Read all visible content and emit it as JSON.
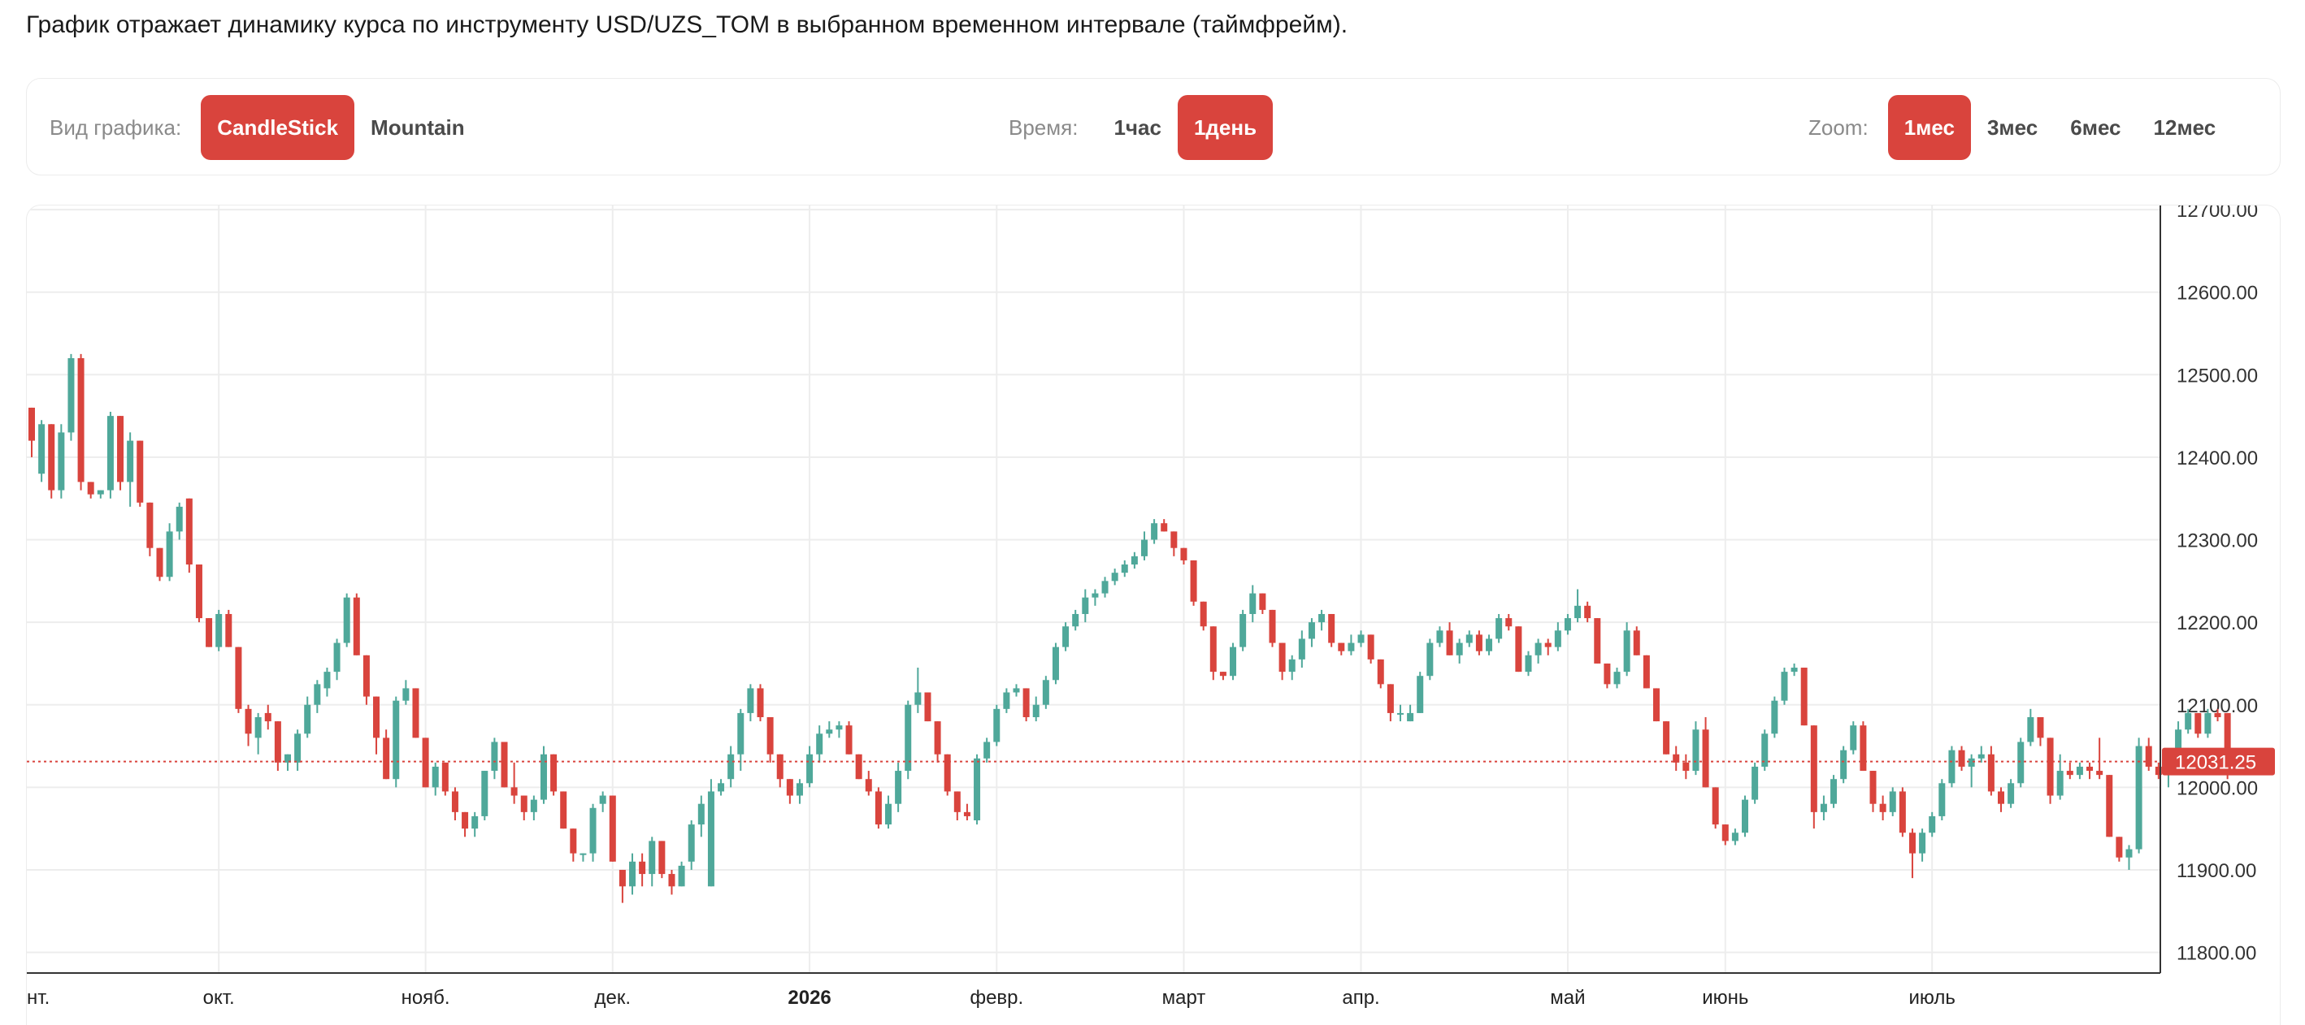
{
  "description": "График отражает динамику курса по инструменту USD/UZS_TOM в выбранном временном интервале (таймфрейм).",
  "toolbar": {
    "chart_type": {
      "label": "Вид графика:",
      "options": [
        "CandleStick",
        "Mountain"
      ],
      "selected": "CandleStick"
    },
    "time": {
      "label": "Время:",
      "options": [
        "1час",
        "1день"
      ],
      "selected": "1день"
    },
    "zoom": {
      "label": "Zoom:",
      "options": [
        "1мес",
        "3мес",
        "6мес",
        "12мес"
      ],
      "selected": "1мес"
    }
  },
  "colors": {
    "up": "#4fa89a",
    "down": "#d9443d",
    "accent": "#d9443d",
    "grid": "#ededed",
    "axis": "#333333"
  },
  "chart_data": {
    "type": "candlestick",
    "instrument": "USD/UZS_TOM",
    "yticks": [
      11800,
      11900,
      12000,
      12100,
      12200,
      12300,
      12400,
      12500,
      12600,
      12700
    ],
    "ylim": [
      11775,
      12705
    ],
    "ytick_format": "2 decimals",
    "x_index_range": [
      0,
      217
    ],
    "xticks": [
      {
        "label": "нт.",
        "index": 0,
        "bold": false
      },
      {
        "label": "окт.",
        "index": 19,
        "bold": false
      },
      {
        "label": "нояб.",
        "index": 40,
        "bold": false
      },
      {
        "label": "дек.",
        "index": 59,
        "bold": false
      },
      {
        "label": "2026",
        "index": 79,
        "bold": true
      },
      {
        "label": "февр.",
        "index": 98,
        "bold": false
      },
      {
        "label": "март",
        "index": 117,
        "bold": false
      },
      {
        "label": "апр.",
        "index": 135,
        "bold": false
      },
      {
        "label": "май",
        "index": 156,
        "bold": false
      },
      {
        "label": "июнь",
        "index": 172,
        "bold": false
      },
      {
        "label": "июль",
        "index": 193,
        "bold": false
      }
    ],
    "last_price": 12031.25,
    "last_price_label": "12031.25",
    "grid": true,
    "candles": [
      [
        12460,
        12460,
        12400,
        12420
      ],
      [
        12380,
        12445,
        12370,
        12440
      ],
      [
        12440,
        12440,
        12350,
        12360
      ],
      [
        12360,
        12440,
        12350,
        12430
      ],
      [
        12430,
        12525,
        12420,
        12520
      ],
      [
        12520,
        12525,
        12360,
        12370
      ],
      [
        12370,
        12370,
        12350,
        12355
      ],
      [
        12355,
        12360,
        12350,
        12360
      ],
      [
        12360,
        12455,
        12350,
        12450
      ],
      [
        12450,
        12450,
        12360,
        12370
      ],
      [
        12370,
        12430,
        12340,
        12420
      ],
      [
        12420,
        12420,
        12340,
        12345
      ],
      [
        12345,
        12345,
        12280,
        12290
      ],
      [
        12290,
        12290,
        12250,
        12255
      ],
      [
        12255,
        12320,
        12250,
        12310
      ],
      [
        12310,
        12345,
        12300,
        12340
      ],
      [
        12350,
        12350,
        12260,
        12270
      ],
      [
        12270,
        12270,
        12200,
        12205
      ],
      [
        12205,
        12205,
        12170,
        12170
      ],
      [
        12170,
        12215,
        12165,
        12210
      ],
      [
        12210,
        12215,
        12170,
        12170
      ],
      [
        12170,
        12170,
        12090,
        12095
      ],
      [
        12095,
        12100,
        12050,
        12065
      ],
      [
        12060,
        12090,
        12040,
        12085
      ],
      [
        12090,
        12100,
        12070,
        12080
      ],
      [
        12080,
        12080,
        12020,
        12030
      ],
      [
        12030,
        12040,
        12020,
        12040
      ],
      [
        12030,
        12070,
        12020,
        12065
      ],
      [
        12065,
        12110,
        12060,
        12100
      ],
      [
        12100,
        12130,
        12090,
        12125
      ],
      [
        12120,
        12145,
        12110,
        12140
      ],
      [
        12140,
        12180,
        12130,
        12175
      ],
      [
        12175,
        12235,
        12170,
        12230
      ],
      [
        12230,
        12235,
        12160,
        12160
      ],
      [
        12160,
        12160,
        12100,
        12110
      ],
      [
        12110,
        12110,
        12040,
        12060
      ],
      [
        12060,
        12070,
        12010,
        12010
      ],
      [
        12010,
        12110,
        12000,
        12105
      ],
      [
        12105,
        12130,
        12100,
        12120
      ],
      [
        12120,
        12120,
        12060,
        12060
      ],
      [
        12060,
        12060,
        12000,
        12000
      ],
      [
        12000,
        12030,
        11990,
        12025
      ],
      [
        12030,
        12030,
        11990,
        11995
      ],
      [
        11995,
        12000,
        11960,
        11970
      ],
      [
        11970,
        11970,
        11940,
        11950
      ],
      [
        11950,
        11970,
        11940,
        11965
      ],
      [
        11965,
        12020,
        11960,
        12020
      ],
      [
        12020,
        12060,
        12010,
        12055
      ],
      [
        12055,
        12055,
        12000,
        12000
      ],
      [
        12000,
        12030,
        11980,
        11990
      ],
      [
        11990,
        11990,
        11960,
        11970
      ],
      [
        11970,
        11990,
        11960,
        11985
      ],
      [
        11985,
        12050,
        11980,
        12040
      ],
      [
        12040,
        12040,
        11990,
        11995
      ],
      [
        11995,
        11995,
        11950,
        11950
      ],
      [
        11950,
        11950,
        11910,
        11920
      ],
      [
        11920,
        11920,
        11910,
        11920
      ],
      [
        11920,
        11980,
        11910,
        11975
      ],
      [
        11980,
        11995,
        11970,
        11990
      ],
      [
        11990,
        11990,
        11910,
        11910
      ],
      [
        11900,
        11900,
        11860,
        11880
      ],
      [
        11880,
        11920,
        11870,
        11910
      ],
      [
        11910,
        11920,
        11880,
        11895
      ],
      [
        11895,
        11940,
        11880,
        11935
      ],
      [
        11935,
        11935,
        11890,
        11895
      ],
      [
        11895,
        11900,
        11870,
        11880
      ],
      [
        11880,
        11910,
        11880,
        11905
      ],
      [
        11910,
        11960,
        11900,
        11955
      ],
      [
        11955,
        11990,
        11940,
        11980
      ],
      [
        11880,
        12010,
        11880,
        11995
      ],
      [
        11995,
        12010,
        11990,
        12005
      ],
      [
        12010,
        12050,
        12000,
        12040
      ],
      [
        12040,
        12095,
        12020,
        12090
      ],
      [
        12090,
        12125,
        12080,
        12120
      ],
      [
        12120,
        12125,
        12080,
        12085
      ],
      [
        12085,
        12085,
        12030,
        12040
      ],
      [
        12040,
        12040,
        12000,
        12010
      ],
      [
        12010,
        12010,
        11980,
        11990
      ],
      [
        11990,
        12010,
        11980,
        12005
      ],
      [
        12005,
        12050,
        12000,
        12040
      ],
      [
        12040,
        12075,
        12030,
        12065
      ],
      [
        12065,
        12080,
        12060,
        12070
      ],
      [
        12070,
        12080,
        12060,
        12075
      ],
      [
        12075,
        12080,
        12040,
        12040
      ],
      [
        12040,
        12040,
        12010,
        12010
      ],
      [
        12010,
        12020,
        11990,
        11995
      ],
      [
        11995,
        12000,
        11950,
        11955
      ],
      [
        11955,
        11990,
        11950,
        11980
      ],
      [
        11980,
        12030,
        11970,
        12020
      ],
      [
        12020,
        12105,
        12010,
        12100
      ],
      [
        12100,
        12145,
        12090,
        12115
      ],
      [
        12115,
        12115,
        12080,
        12080
      ],
      [
        12080,
        12080,
        12030,
        12040
      ],
      [
        12040,
        12040,
        11990,
        11995
      ],
      [
        11995,
        11995,
        11960,
        11970
      ],
      [
        11970,
        11980,
        11960,
        11965
      ],
      [
        11960,
        12040,
        11955,
        12035
      ],
      [
        12035,
        12060,
        12030,
        12055
      ],
      [
        12055,
        12100,
        12050,
        12095
      ],
      [
        12095,
        12120,
        12090,
        12115
      ],
      [
        12115,
        12125,
        12110,
        12120
      ],
      [
        12120,
        12120,
        12080,
        12085
      ],
      [
        12085,
        12110,
        12080,
        12100
      ],
      [
        12100,
        12135,
        12095,
        12130
      ],
      [
        12130,
        12175,
        12125,
        12170
      ],
      [
        12170,
        12200,
        12165,
        12195
      ],
      [
        12195,
        12215,
        12190,
        12210
      ],
      [
        12210,
        12240,
        12200,
        12230
      ],
      [
        12230,
        12240,
        12220,
        12235
      ],
      [
        12235,
        12255,
        12230,
        12250
      ],
      [
        12250,
        12265,
        12245,
        12260
      ],
      [
        12260,
        12275,
        12255,
        12270
      ],
      [
        12270,
        12285,
        12265,
        12280
      ],
      [
        12280,
        12310,
        12275,
        12300
      ],
      [
        12300,
        12325,
        12295,
        12320
      ],
      [
        12320,
        12325,
        12310,
        12310
      ],
      [
        12310,
        12310,
        12280,
        12290
      ],
      [
        12290,
        12290,
        12270,
        12275
      ],
      [
        12275,
        12275,
        12220,
        12225
      ],
      [
        12225,
        12225,
        12190,
        12195
      ],
      [
        12195,
        12195,
        12130,
        12140
      ],
      [
        12140,
        12140,
        12130,
        12135
      ],
      [
        12135,
        12175,
        12130,
        12170
      ],
      [
        12170,
        12215,
        12165,
        12210
      ],
      [
        12210,
        12245,
        12200,
        12235
      ],
      [
        12235,
        12235,
        12210,
        12215
      ],
      [
        12215,
        12215,
        12170,
        12175
      ],
      [
        12175,
        12175,
        12130,
        12140
      ],
      [
        12140,
        12160,
        12130,
        12155
      ],
      [
        12155,
        12190,
        12145,
        12180
      ],
      [
        12180,
        12205,
        12170,
        12200
      ],
      [
        12200,
        12215,
        12190,
        12210
      ],
      [
        12210,
        12210,
        12170,
        12175
      ],
      [
        12175,
        12175,
        12160,
        12165
      ],
      [
        12165,
        12185,
        12160,
        12175
      ],
      [
        12175,
        12190,
        12170,
        12185
      ],
      [
        12185,
        12185,
        12150,
        12155
      ],
      [
        12155,
        12155,
        12120,
        12125
      ],
      [
        12125,
        12125,
        12080,
        12090
      ],
      [
        12090,
        12100,
        12080,
        12090
      ],
      [
        12080,
        12100,
        12080,
        12090
      ],
      [
        12090,
        12140,
        12090,
        12135
      ],
      [
        12135,
        12180,
        12130,
        12175
      ],
      [
        12175,
        12195,
        12170,
        12190
      ],
      [
        12190,
        12200,
        12160,
        12160
      ],
      [
        12160,
        12180,
        12150,
        12175
      ],
      [
        12175,
        12190,
        12170,
        12185
      ],
      [
        12185,
        12190,
        12160,
        12165
      ],
      [
        12165,
        12185,
        12160,
        12180
      ],
      [
        12180,
        12210,
        12175,
        12205
      ],
      [
        12205,
        12210,
        12190,
        12195
      ],
      [
        12195,
        12195,
        12140,
        12140
      ],
      [
        12140,
        12165,
        12135,
        12160
      ],
      [
        12160,
        12180,
        12150,
        12175
      ],
      [
        12175,
        12180,
        12160,
        12170
      ],
      [
        12170,
        12200,
        12165,
        12190
      ],
      [
        12190,
        12210,
        12185,
        12205
      ],
      [
        12205,
        12240,
        12200,
        12220
      ],
      [
        12220,
        12225,
        12200,
        12205
      ],
      [
        12205,
        12205,
        12150,
        12150
      ],
      [
        12150,
        12150,
        12120,
        12125
      ],
      [
        12125,
        12145,
        12120,
        12140
      ],
      [
        12140,
        12200,
        12135,
        12190
      ],
      [
        12190,
        12195,
        12160,
        12160
      ],
      [
        12160,
        12160,
        12120,
        12120
      ],
      [
        12120,
        12120,
        12080,
        12080
      ],
      [
        12080,
        12080,
        12040,
        12040
      ],
      [
        12040,
        12050,
        12020,
        12030
      ],
      [
        12030,
        12040,
        12010,
        12020
      ],
      [
        12020,
        12080,
        12015,
        12070
      ],
      [
        12070,
        12085,
        12000,
        12000
      ],
      [
        12000,
        12000,
        11950,
        11955
      ],
      [
        11955,
        11955,
        11930,
        11935
      ],
      [
        11935,
        11950,
        11930,
        11945
      ],
      [
        11945,
        11990,
        11940,
        11985
      ],
      [
        11985,
        12030,
        11980,
        12025
      ],
      [
        12025,
        12070,
        12020,
        12065
      ],
      [
        12065,
        12110,
        12060,
        12105
      ],
      [
        12105,
        12145,
        12100,
        12140
      ],
      [
        12140,
        12150,
        12135,
        12145
      ],
      [
        12145,
        12145,
        12075,
        12075
      ],
      [
        12075,
        12075,
        11950,
        11970
      ],
      [
        11970,
        11990,
        11960,
        11980
      ],
      [
        11980,
        12015,
        11975,
        12010
      ],
      [
        12010,
        12050,
        12005,
        12045
      ],
      [
        12045,
        12080,
        12040,
        12075
      ],
      [
        12075,
        12080,
        12020,
        12020
      ],
      [
        12020,
        12020,
        11970,
        11980
      ],
      [
        11980,
        11990,
        11960,
        11970
      ],
      [
        11970,
        12000,
        11965,
        11995
      ],
      [
        11995,
        12000,
        11940,
        11945
      ],
      [
        11945,
        11950,
        11890,
        11920
      ],
      [
        11920,
        11950,
        11910,
        11945
      ],
      [
        11945,
        11970,
        11940,
        11965
      ],
      [
        11965,
        12010,
        11960,
        12005
      ],
      [
        12005,
        12050,
        12000,
        12045
      ],
      [
        12045,
        12050,
        12020,
        12025
      ],
      [
        12025,
        12040,
        12000,
        12035
      ],
      [
        12035,
        12050,
        12030,
        12040
      ],
      [
        12040,
        12050,
        11990,
        11995
      ],
      [
        11995,
        12000,
        11970,
        11980
      ],
      [
        11980,
        12010,
        11975,
        12005
      ],
      [
        12005,
        12060,
        12000,
        12055
      ],
      [
        12055,
        12095,
        12050,
        12085
      ],
      [
        12085,
        12085,
        12050,
        12060
      ],
      [
        12060,
        12060,
        11980,
        11990
      ],
      [
        11990,
        12040,
        11985,
        12020
      ],
      [
        12020,
        12030,
        12010,
        12015
      ],
      [
        12015,
        12030,
        12010,
        12025
      ],
      [
        12025,
        12030,
        12010,
        12020
      ],
      [
        12020,
        12060,
        12010,
        12015
      ],
      [
        12015,
        12015,
        11940,
        11940
      ],
      [
        11940,
        11940,
        11910,
        11915
      ],
      [
        11915,
        11930,
        11900,
        11925
      ],
      [
        11925,
        12060,
        11920,
        12050
      ],
      [
        12050,
        12060,
        12020,
        12025
      ],
      [
        12025,
        12030,
        12010,
        12015
      ],
      [
        12015,
        12030,
        12000,
        12020
      ],
      [
        12020,
        12080,
        12015,
        12070
      ],
      [
        12070,
        12095,
        12065,
        12090
      ],
      [
        12090,
        12090,
        12060,
        12065
      ],
      [
        12065,
        12095,
        12060,
        12090
      ],
      [
        12090,
        12095,
        12080,
        12085
      ],
      [
        12090,
        12090,
        12010,
        12031.25
      ]
    ]
  }
}
